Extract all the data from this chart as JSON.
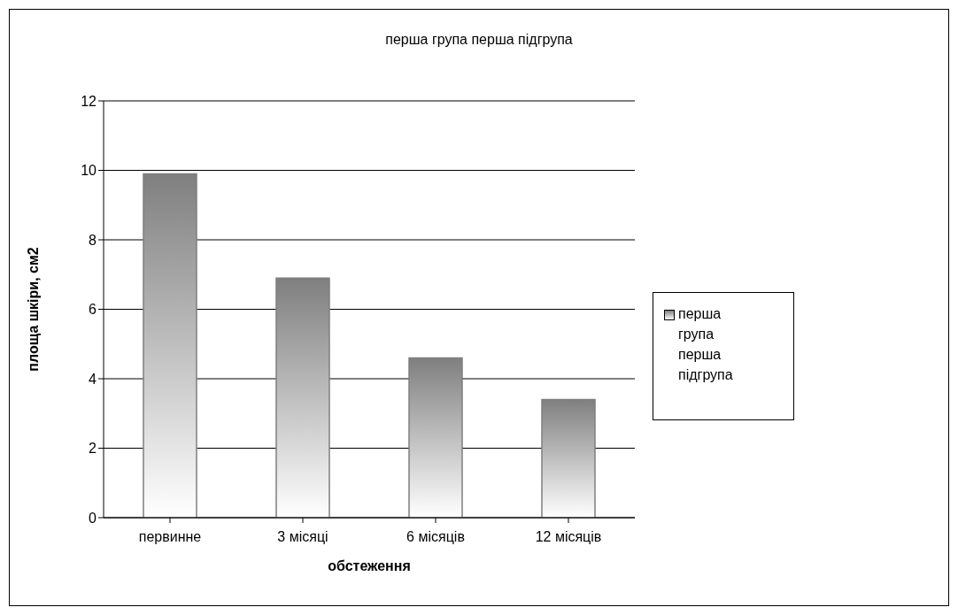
{
  "chart_data": {
    "type": "bar",
    "title": "перша група перша підгрупа",
    "xlabel": "обстеження",
    "ylabel": "площа шкіри, см2",
    "categories": [
      "первинне",
      "3 місяці",
      "6 місяців",
      "12 місяців"
    ],
    "series": [
      {
        "name": "перша група перша підгрупа",
        "color": "#7f7f7f",
        "values": [
          9.9,
          6.9,
          4.6,
          3.4
        ]
      }
    ],
    "ylim": [
      0,
      12
    ],
    "yticks": [
      0,
      2,
      4,
      6,
      8,
      10,
      12
    ],
    "grid": "y",
    "legend": "right"
  }
}
